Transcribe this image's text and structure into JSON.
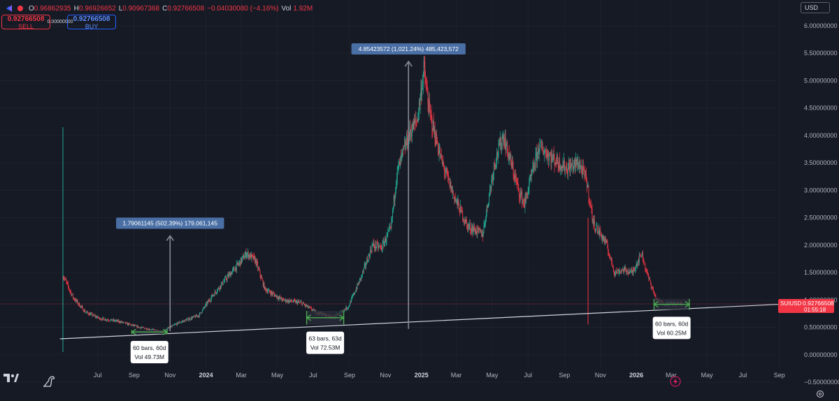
{
  "legend": {
    "open_label": "O",
    "open": "0.96862935",
    "high_label": "H",
    "high": "0.96926652",
    "low_label": "L",
    "low": "0.90967368",
    "close_label": "C",
    "close": "0.92766508",
    "change": "−0.04030080 (−4.16%)",
    "vol_label": "Vol",
    "vol": "1.92M"
  },
  "trade": {
    "sell_price": "0.92766508",
    "sell_label": "SELL",
    "spread": "0.00000000",
    "buy_price": "0.92766508",
    "buy_label": "BUY"
  },
  "currency": "USD",
  "icons": {
    "symbol": "pair-icon",
    "logo": "tradingview-logo-icon",
    "dino": "dino-icon",
    "flash": "flash-icon",
    "settings": "gear-icon"
  },
  "colors": {
    "up": "#22ab94",
    "down": "#f23645",
    "background": "#161a25",
    "range_box": "#2a2e39",
    "range_arrow": "#4caf50",
    "label_box": "#4a6fa5"
  },
  "chart_data": {
    "type": "candlestick",
    "ylim": [
      -0.5,
      6.0
    ],
    "yticks": [
      "6.00000000",
      "5.50000000",
      "5.00000000",
      "4.50000000",
      "4.00000000",
      "3.50000000",
      "3.00000000",
      "2.50000000",
      "2.00000000",
      "1.50000000",
      "1.00000000",
      "0.50000000",
      "0.00000000",
      "−0.50000000"
    ],
    "ytick_values": [
      6.0,
      5.5,
      5.0,
      4.5,
      4.0,
      3.5,
      3.0,
      2.5,
      2.0,
      1.5,
      1.0,
      0.5,
      0.0,
      -0.5
    ],
    "xlim": [
      "2023-05-03",
      "2026-10-01"
    ],
    "xticks": [
      "Jul",
      "Sep",
      "Nov",
      "2024",
      "Mar",
      "May",
      "Jul",
      "Sep",
      "Nov",
      "2025",
      "Mar",
      "May",
      "Jul",
      "Sep",
      "Nov",
      "2026",
      "Mar",
      "May",
      "Jul",
      "Sep"
    ],
    "xtick_dates": [
      "2023-07-01",
      "2023-09-01",
      "2023-11-01",
      "2024-01-01",
      "2024-03-01",
      "2024-05-01",
      "2024-07-01",
      "2024-09-01",
      "2024-11-01",
      "2025-01-01",
      "2025-03-01",
      "2025-05-01",
      "2025-07-01",
      "2025-09-01",
      "2025-11-01",
      "2026-01-01",
      "2026-03-01",
      "2026-05-01",
      "2026-07-01",
      "2026-09-01"
    ],
    "bold_xticks": [
      "2024",
      "2025",
      "2026"
    ],
    "last_price": {
      "symbol": "SUIUSD",
      "value": 0.92766508,
      "label": "0.92766508",
      "countdown": "01:55:18"
    },
    "price_path": [
      [
        "2023-05-03",
        1.45
      ],
      [
        "2023-05-20",
        1.05
      ],
      [
        "2023-06-10",
        0.78
      ],
      [
        "2023-07-05",
        0.66
      ],
      [
        "2023-08-05",
        0.61
      ],
      [
        "2023-09-10",
        0.5
      ],
      [
        "2023-10-18",
        0.42
      ],
      [
        "2023-11-15",
        0.58
      ],
      [
        "2023-12-20",
        0.72
      ],
      [
        "2024-01-10",
        1.05
      ],
      [
        "2024-02-05",
        1.4
      ],
      [
        "2024-02-25",
        1.65
      ],
      [
        "2024-03-10",
        1.85
      ],
      [
        "2024-03-25",
        1.72
      ],
      [
        "2024-04-10",
        1.2
      ],
      [
        "2024-05-10",
        1.0
      ],
      [
        "2024-06-10",
        0.95
      ],
      [
        "2024-07-05",
        0.78
      ],
      [
        "2024-08-05",
        0.68
      ],
      [
        "2024-08-30",
        0.88
      ],
      [
        "2024-09-20",
        1.4
      ],
      [
        "2024-10-10",
        2.0
      ],
      [
        "2024-10-25",
        1.95
      ],
      [
        "2024-11-10",
        2.3
      ],
      [
        "2024-11-20",
        3.3
      ],
      [
        "2024-12-10",
        4.0
      ],
      [
        "2024-12-25",
        4.3
      ],
      [
        "2025-01-05",
        5.2
      ],
      [
        "2025-01-15",
        4.4
      ],
      [
        "2025-02-05",
        3.5
      ],
      [
        "2025-02-25",
        2.9
      ],
      [
        "2025-03-20",
        2.35
      ],
      [
        "2025-04-15",
        2.2
      ],
      [
        "2025-05-05",
        3.5
      ],
      [
        "2025-05-20",
        4.0
      ],
      [
        "2025-06-15",
        3.0
      ],
      [
        "2025-06-25",
        2.75
      ],
      [
        "2025-07-20",
        3.8
      ],
      [
        "2025-08-10",
        3.6
      ],
      [
        "2025-09-05",
        3.4
      ],
      [
        "2025-09-25",
        3.5
      ],
      [
        "2025-10-08",
        3.2
      ],
      [
        "2025-10-20",
        2.4
      ],
      [
        "2025-11-10",
        2.05
      ],
      [
        "2025-11-25",
        1.5
      ],
      [
        "2025-12-10",
        1.55
      ],
      [
        "2025-12-25",
        1.5
      ],
      [
        "2026-01-10",
        1.85
      ],
      [
        "2026-01-20",
        1.45
      ],
      [
        "2026-02-05",
        0.98
      ],
      [
        "2026-02-20",
        0.93
      ],
      [
        "2026-03-20",
        0.93
      ]
    ],
    "spikes": [
      {
        "date": "2023-05-03",
        "high": 4.15,
        "low": 0.05,
        "color": "up"
      },
      {
        "date": "2025-10-11",
        "high": 2.5,
        "low": 0.55,
        "color": "down"
      }
    ],
    "trendline": {
      "start": [
        "2023-04-28",
        0.29
      ],
      "end": [
        "2026-09-01",
        0.92
      ]
    },
    "annotations": [
      {
        "type": "range",
        "start": "2023-08-28",
        "end": "2023-10-27",
        "low": 0.38,
        "high": 0.45,
        "label1": "60 bars, 60d",
        "label2": "Vol 49.73M"
      },
      {
        "type": "range",
        "start": "2024-06-20",
        "end": "2024-08-22",
        "low": 0.55,
        "high": 0.8,
        "label1": "63 bars, 63d",
        "label2": "Vol 72.53M"
      },
      {
        "type": "range",
        "start": "2026-01-31",
        "end": "2026-04-01",
        "low": 0.82,
        "high": 1.02,
        "label1": "60 bars, 60d",
        "label2": "Vol 60.25M"
      },
      {
        "type": "measure",
        "date": "2023-11-01",
        "from": 0.43,
        "to": 2.17,
        "label": "1.79061145 (502.39%) 179,061,145"
      },
      {
        "type": "measure",
        "date": "2024-12-10",
        "from": 0.47,
        "to": 5.35,
        "label": "4.85423572 (1,021.24%) 485,423,572"
      }
    ]
  }
}
